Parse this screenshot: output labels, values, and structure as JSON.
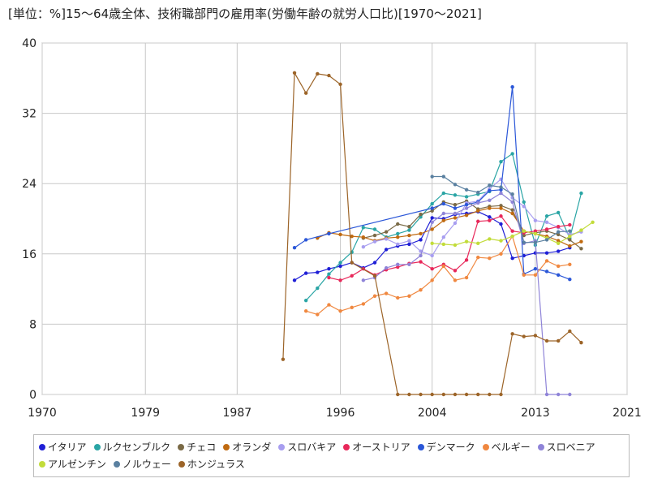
{
  "title": "[単位：%]15～64歳全体、技術職部門の雇用率(労働年齢の就労人口比)[1970～2021]",
  "chart_data": {
    "type": "line",
    "title": "[単位：%]15～64歳全体、技術職部門の雇用率(労働年齢の就労人口比)[1970～2021]",
    "xlabel": "",
    "ylabel": "",
    "xlim": [
      1970,
      2021
    ],
    "ylim": [
      0,
      40
    ],
    "xticks": [
      "1970",
      "1979",
      "1987",
      "1996",
      "2004",
      "2013",
      "2021"
    ],
    "yticks": [
      "0",
      "8",
      "16",
      "24",
      "32",
      "40"
    ],
    "grid": true,
    "legend_position": "bottom",
    "series": [
      {
        "name": "イタリア",
        "color": "#1f1fd6",
        "points": [
          [
            1992,
            13.0
          ],
          [
            1993,
            13.8
          ],
          [
            1994,
            13.9
          ],
          [
            1995,
            14.3
          ],
          [
            1996,
            14.6
          ],
          [
            1997,
            15.0
          ],
          [
            1998,
            14.4
          ],
          [
            1999,
            15.0
          ],
          [
            2000,
            16.5
          ],
          [
            2001,
            16.9
          ],
          [
            2002,
            17.1
          ],
          [
            2003,
            17.6
          ],
          [
            2004,
            20.1
          ],
          [
            2005,
            20.0
          ],
          [
            2006,
            20.5
          ],
          [
            2007,
            20.6
          ],
          [
            2008,
            20.8
          ],
          [
            2009,
            20.2
          ],
          [
            2010,
            19.4
          ],
          [
            2011,
            15.5
          ],
          [
            2012,
            15.8
          ],
          [
            2013,
            16.1
          ],
          [
            2014,
            16.1
          ],
          [
            2015,
            16.3
          ],
          [
            2016,
            16.7
          ]
        ]
      },
      {
        "name": "ルクセンブルク",
        "color": "#2aa5a5",
        "points": [
          [
            1993,
            10.7
          ],
          [
            1994,
            12.1
          ],
          [
            1995,
            13.7
          ],
          [
            1996,
            15.0
          ],
          [
            1997,
            16.2
          ],
          [
            1998,
            19.0
          ],
          [
            1999,
            18.8
          ],
          [
            2000,
            17.9
          ],
          [
            2001,
            18.3
          ],
          [
            2002,
            18.7
          ],
          [
            2003,
            20.2
          ],
          [
            2004,
            21.7
          ],
          [
            2005,
            22.9
          ],
          [
            2006,
            22.7
          ],
          [
            2007,
            22.5
          ],
          [
            2008,
            22.8
          ],
          [
            2009,
            23.1
          ],
          [
            2010,
            26.5
          ],
          [
            2011,
            27.4
          ],
          [
            2012,
            21.9
          ],
          [
            2013,
            17.0
          ],
          [
            2014,
            20.3
          ],
          [
            2015,
            20.7
          ],
          [
            2016,
            17.8
          ],
          [
            2017,
            22.9
          ]
        ]
      },
      {
        "name": "チェコ",
        "color": "#7a6a46",
        "points": [
          [
            1998,
            17.8
          ],
          [
            1999,
            18.1
          ],
          [
            2000,
            18.5
          ],
          [
            2001,
            19.4
          ],
          [
            2002,
            19.1
          ],
          [
            2003,
            20.5
          ],
          [
            2004,
            20.9
          ],
          [
            2005,
            21.9
          ],
          [
            2006,
            21.6
          ],
          [
            2007,
            22.0
          ],
          [
            2008,
            21.1
          ],
          [
            2009,
            21.4
          ],
          [
            2010,
            21.5
          ],
          [
            2011,
            21.0
          ],
          [
            2012,
            18.1
          ],
          [
            2013,
            18.4
          ],
          [
            2014,
            18.6
          ],
          [
            2015,
            18.2
          ],
          [
            2016,
            17.6
          ],
          [
            2017,
            16.6
          ]
        ]
      },
      {
        "name": "オランダ",
        "color": "#c06a10",
        "points": [
          [
            1994,
            17.8
          ],
          [
            1995,
            18.4
          ],
          [
            1996,
            18.2
          ],
          [
            1997,
            18.0
          ],
          [
            1998,
            17.9
          ],
          [
            1999,
            17.5
          ],
          [
            2000,
            17.8
          ],
          [
            2001,
            17.9
          ],
          [
            2002,
            18.1
          ],
          [
            2003,
            18.3
          ],
          [
            2004,
            18.8
          ],
          [
            2005,
            19.8
          ],
          [
            2006,
            20.1
          ],
          [
            2007,
            20.4
          ],
          [
            2008,
            20.9
          ],
          [
            2009,
            21.2
          ],
          [
            2010,
            21.2
          ],
          [
            2011,
            20.6
          ],
          [
            2012,
            18.6
          ],
          [
            2013,
            18.3
          ],
          [
            2014,
            18.0
          ],
          [
            2015,
            17.5
          ],
          [
            2016,
            16.9
          ],
          [
            2017,
            17.4
          ]
        ]
      },
      {
        "name": "スロバキア",
        "color": "#a89ef0",
        "points": [
          [
            1998,
            16.8
          ],
          [
            1999,
            17.4
          ],
          [
            2000,
            17.7
          ],
          [
            2001,
            17.1
          ],
          [
            2002,
            17.5
          ],
          [
            2003,
            16.3
          ],
          [
            2004,
            15.8
          ],
          [
            2005,
            17.9
          ],
          [
            2006,
            19.5
          ],
          [
            2007,
            21.8
          ],
          [
            2008,
            22.0
          ],
          [
            2009,
            23.4
          ],
          [
            2010,
            24.5
          ],
          [
            2011,
            22.4
          ],
          [
            2012,
            21.4
          ],
          [
            2013,
            19.8
          ],
          [
            2014,
            19.6
          ],
          [
            2015,
            19.0
          ],
          [
            2016,
            18.2
          ],
          [
            2017,
            18.5
          ]
        ]
      },
      {
        "name": "オーストリア",
        "color": "#e8285a",
        "points": [
          [
            1995,
            13.3
          ],
          [
            1996,
            13.0
          ],
          [
            1997,
            13.5
          ],
          [
            1998,
            14.3
          ],
          [
            1999,
            13.6
          ],
          [
            2000,
            14.2
          ],
          [
            2001,
            14.5
          ],
          [
            2002,
            14.9
          ],
          [
            2003,
            15.1
          ],
          [
            2004,
            14.3
          ],
          [
            2005,
            14.8
          ],
          [
            2006,
            14.1
          ],
          [
            2007,
            15.3
          ],
          [
            2008,
            19.7
          ],
          [
            2009,
            19.8
          ],
          [
            2010,
            20.3
          ],
          [
            2011,
            18.6
          ],
          [
            2012,
            18.4
          ],
          [
            2013,
            18.6
          ],
          [
            2014,
            18.8
          ],
          [
            2015,
            19.1
          ],
          [
            2016,
            19.3
          ]
        ]
      },
      {
        "name": "デンマーク",
        "color": "#2b57d8",
        "points": [
          [
            1992,
            16.7
          ],
          [
            1993,
            17.6
          ],
          [
            1995,
            18.3
          ],
          [
            2004,
            21.2
          ],
          [
            2005,
            21.7
          ],
          [
            2006,
            21.2
          ],
          [
            2007,
            21.6
          ],
          [
            2008,
            21.9
          ],
          [
            2009,
            23.2
          ],
          [
            2010,
            23.3
          ],
          [
            2011,
            35.0
          ],
          [
            2012,
            13.7
          ],
          [
            2013,
            14.3
          ],
          [
            2014,
            14.0
          ],
          [
            2015,
            13.6
          ],
          [
            2016,
            13.1
          ]
        ]
      },
      {
        "name": "ベルギー",
        "color": "#f08840",
        "points": [
          [
            1993,
            9.5
          ],
          [
            1994,
            9.1
          ],
          [
            1995,
            10.2
          ],
          [
            1996,
            9.5
          ],
          [
            1997,
            9.9
          ],
          [
            1998,
            10.3
          ],
          [
            1999,
            11.2
          ],
          [
            2000,
            11.5
          ],
          [
            2001,
            11.0
          ],
          [
            2002,
            11.2
          ],
          [
            2003,
            11.9
          ],
          [
            2004,
            13.0
          ],
          [
            2005,
            14.6
          ],
          [
            2006,
            13.0
          ],
          [
            2007,
            13.3
          ],
          [
            2008,
            15.6
          ],
          [
            2009,
            15.5
          ],
          [
            2010,
            16.0
          ],
          [
            2011,
            18.0
          ],
          [
            2012,
            13.6
          ],
          [
            2013,
            13.6
          ],
          [
            2014,
            15.2
          ],
          [
            2015,
            14.6
          ],
          [
            2016,
            14.8
          ]
        ]
      },
      {
        "name": "スロベニア",
        "color": "#8f84d8",
        "points": [
          [
            1998,
            13.0
          ],
          [
            1999,
            13.3
          ],
          [
            2000,
            14.4
          ],
          [
            2001,
            14.8
          ],
          [
            2002,
            14.8
          ],
          [
            2003,
            15.8
          ],
          [
            2004,
            19.6
          ],
          [
            2005,
            20.6
          ],
          [
            2006,
            20.6
          ],
          [
            2007,
            21.2
          ],
          [
            2008,
            21.8
          ],
          [
            2009,
            22.1
          ],
          [
            2010,
            22.9
          ],
          [
            2011,
            21.9
          ],
          [
            2012,
            17.2
          ],
          [
            2013,
            17.5
          ],
          [
            2014,
            0.0
          ],
          [
            2015,
            0.0
          ],
          [
            2016,
            0.0
          ]
        ]
      },
      {
        "name": "アルゼンチン",
        "color": "#c2dc3a",
        "points": [
          [
            2004,
            17.2
          ],
          [
            2005,
            17.1
          ],
          [
            2006,
            17.0
          ],
          [
            2007,
            17.4
          ],
          [
            2008,
            17.2
          ],
          [
            2009,
            17.7
          ],
          [
            2010,
            17.5
          ],
          [
            2011,
            18.0
          ],
          [
            2012,
            18.6
          ],
          [
            2013,
            18.3
          ],
          [
            2014,
            17.8
          ],
          [
            2015,
            17.2
          ],
          [
            2016,
            18.0
          ],
          [
            2017,
            18.7
          ],
          [
            2018,
            19.6
          ]
        ]
      },
      {
        "name": "ノルウェー",
        "color": "#5a80a0",
        "points": [
          [
            2004,
            24.8
          ],
          [
            2005,
            24.8
          ],
          [
            2006,
            23.9
          ],
          [
            2007,
            23.3
          ],
          [
            2008,
            23.0
          ],
          [
            2009,
            23.8
          ],
          [
            2010,
            23.6
          ],
          [
            2011,
            22.8
          ],
          [
            2012,
            17.3
          ],
          [
            2013,
            17.3
          ],
          [
            2014,
            17.6
          ],
          [
            2015,
            18.5
          ],
          [
            2016,
            18.6
          ]
        ]
      },
      {
        "name": "ホンジュラス",
        "color": "#9c6428",
        "points": [
          [
            1991,
            4.0
          ],
          [
            1992,
            36.6
          ],
          [
            1993,
            34.3
          ],
          [
            1994,
            36.5
          ],
          [
            1995,
            36.3
          ],
          [
            1996,
            35.3
          ],
          [
            1997,
            15.0
          ],
          [
            1999,
            13.5
          ],
          [
            2001,
            0.0
          ],
          [
            2002,
            0.0
          ],
          [
            2003,
            0.0
          ],
          [
            2004,
            0.0
          ],
          [
            2005,
            0.0
          ],
          [
            2006,
            0.0
          ],
          [
            2007,
            0.0
          ],
          [
            2008,
            0.0
          ],
          [
            2009,
            0.0
          ],
          [
            2010,
            0.0
          ],
          [
            2011,
            6.9
          ],
          [
            2012,
            6.6
          ],
          [
            2013,
            6.7
          ],
          [
            2014,
            6.1
          ],
          [
            2015,
            6.1
          ],
          [
            2016,
            7.2
          ],
          [
            2017,
            5.9
          ]
        ]
      }
    ]
  }
}
